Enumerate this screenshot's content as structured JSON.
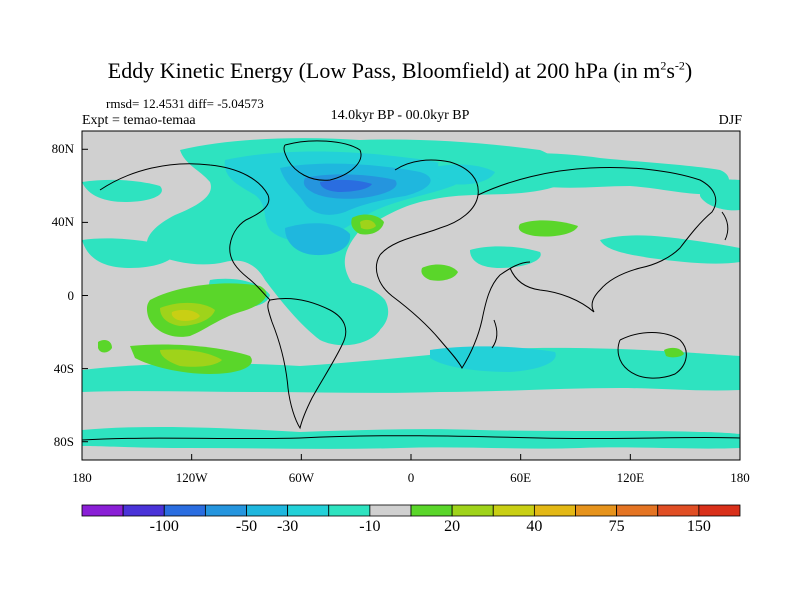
{
  "title": {
    "main": "Eddy Kinetic Energy (Low Pass, Bloomfield) at 200 hPa (in m",
    "sup1": "2",
    "mid": "s",
    "sup2": "-2",
    "end": ")"
  },
  "stats": "rmsd= 12.4531 diff= -5.04573",
  "expt": "Expt = temao-temaa",
  "period": "14.0kyr BP - 00.0kyr BP",
  "season": "DJF",
  "axes": {
    "lat_labels": [
      {
        "value": 80,
        "label": "80N"
      },
      {
        "value": 40,
        "label": "40N"
      },
      {
        "value": 0,
        "label": "0"
      },
      {
        "value": -40,
        "label": "40S"
      },
      {
        "value": -80,
        "label": "80S"
      }
    ],
    "lon_labels": [
      {
        "value": -180,
        "label": "180"
      },
      {
        "value": -120,
        "label": "120W"
      },
      {
        "value": -60,
        "label": "60W"
      },
      {
        "value": 0,
        "label": "0"
      },
      {
        "value": 60,
        "label": "60E"
      },
      {
        "value": 120,
        "label": "120E"
      },
      {
        "value": 180,
        "label": "180"
      }
    ],
    "lat_range": [
      -90,
      90
    ],
    "lon_range": [
      -180,
      180
    ]
  },
  "colorbar": {
    "colors": [
      "#8a1fd6",
      "#4a33d8",
      "#2a6de0",
      "#2595de",
      "#1fb7de",
      "#23d1d8",
      "#2ee3c0",
      "#d0d0d0",
      "#5ad62a",
      "#9fd31a",
      "#c9cf14",
      "#e3b815",
      "#e6931c",
      "#e47423",
      "#e04e24",
      "#d9301a"
    ],
    "labels": [
      "-100",
      "-50",
      "-30",
      "-10",
      "20",
      "40",
      "75",
      "150"
    ],
    "label_boundaries": [
      2,
      4,
      5,
      7,
      9,
      11,
      13,
      15
    ]
  },
  "map_colors": {
    "neutral": "#d0d0d0",
    "neg_light": "#2ee3c0",
    "neg_mid": "#23d1d8",
    "neg_strong": "#1fb7de",
    "neg_stronger": "#2595de",
    "neg_max": "#2a6de0",
    "pos_light": "#5ad62a",
    "pos_mid": "#9fd31a",
    "pos_strong": "#c9cf14"
  }
}
